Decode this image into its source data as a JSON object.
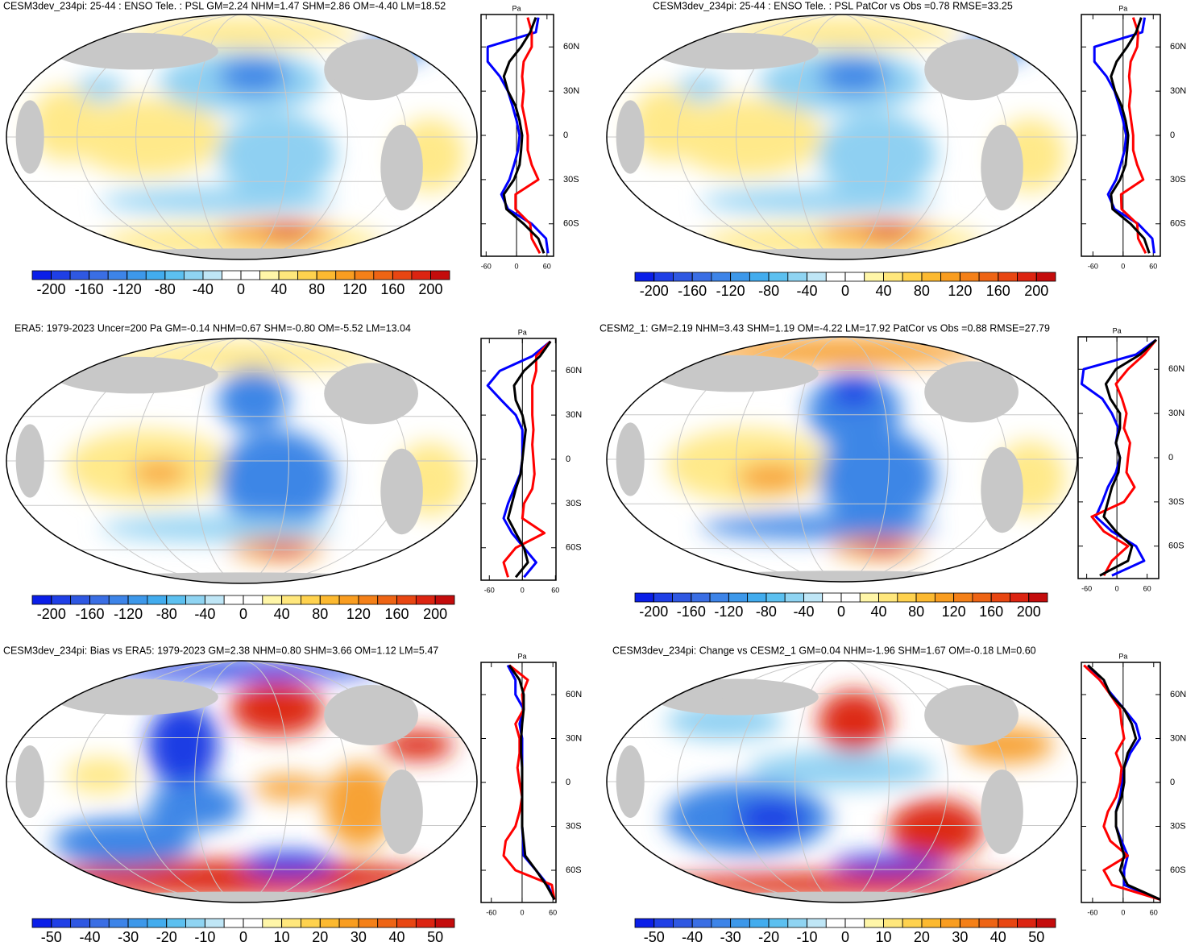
{
  "chart_data": [
    {
      "type": "line",
      "title": "CESM3dev_234pi: 25-44 : ENSO Tele. : PSL GM=2.24 NHM=1.47 SHM=2.86 OM=-4.40 LM=18.52",
      "x_label": "Pa",
      "xlim": [
        -70,
        73
      ],
      "xticks": [
        -60,
        0,
        60
      ],
      "ylim": [
        -82,
        82
      ],
      "yticks": [
        {
          "value": -60,
          "label": "60S"
        },
        {
          "value": -30,
          "label": "30S"
        },
        0,
        {
          "value": 30,
          "label": "30N"
        },
        {
          "value": 60,
          "label": "60N"
        }
      ],
      "y": [
        -80,
        -70,
        -60,
        -50,
        -40,
        -30,
        -20,
        -10,
        0,
        10,
        20,
        30,
        40,
        50,
        60,
        70,
        80
      ],
      "series": [
        {
          "color": "#0000ff",
          "values": [
            62,
            58,
            30,
            -17,
            -30,
            -14,
            -5,
            3,
            6,
            0,
            -8,
            -17,
            -33,
            -57,
            -57,
            38,
            43
          ]
        },
        {
          "color": "#ff0000",
          "values": [
            46,
            30,
            27,
            -2,
            -2,
            43,
            30,
            22,
            22,
            17,
            11,
            14,
            11,
            14,
            30,
            30,
            22
          ]
        },
        {
          "color": "#000000",
          "values": [
            54,
            43,
            14,
            -20,
            -25,
            -5,
            6,
            9,
            11,
            6,
            -2,
            -17,
            -25,
            -14,
            9,
            27,
            38
          ]
        }
      ],
      "colorbar": {
        "lim": [
          -220,
          220
        ],
        "ticks": [
          -200,
          -160,
          -120,
          -80,
          -40,
          0,
          40,
          80,
          120,
          160,
          200
        ],
        "colors": [
          "#0a1ee8",
          "#1f3fe6",
          "#2f58e2",
          "#3a6ee4",
          "#3d84e8",
          "#3d98ea",
          "#42acee",
          "#5cc0f0",
          "#8fd4f2",
          "#bfe6f6",
          "#ffffff",
          "#ffffff",
          "#fff6a8",
          "#ffe77c",
          "#ffd24e",
          "#fcb930",
          "#f99d20",
          "#f48018",
          "#ee6414",
          "#e84612",
          "#dc2411",
          "#c40c0c"
        ]
      }
    },
    {
      "type": "line",
      "title": "CESM3dev_234pi: 25-44 : ENSO Tele. : PSL PatCor vs Obs =0.78 RMSE=33.25",
      "x_label": "Pa",
      "xlim": [
        -83,
        74
      ],
      "xticks": [
        -60,
        0,
        60
      ],
      "ylim": [
        -82,
        82
      ],
      "yticks": [
        {
          "value": -60,
          "label": "60S"
        },
        {
          "value": -30,
          "label": "30S"
        },
        0,
        {
          "value": 30,
          "label": "30N"
        },
        {
          "value": 60,
          "label": "60N"
        }
      ],
      "y": [
        -80,
        -70,
        -60,
        -50,
        -40,
        -30,
        -20,
        -10,
        0,
        10,
        20,
        30,
        40,
        50,
        60,
        70,
        80
      ],
      "series": [
        {
          "color": "#0000ff",
          "values": [
            62,
            58,
            30,
            -17,
            -30,
            -14,
            -5,
            3,
            6,
            0,
            -8,
            -17,
            -33,
            -57,
            -57,
            38,
            43
          ]
        },
        {
          "color": "#ff0000",
          "values": [
            45,
            30,
            28,
            -3,
            -4,
            40,
            28,
            20,
            20,
            16,
            12,
            15,
            12,
            15,
            28,
            30,
            20
          ]
        },
        {
          "color": "#000000",
          "values": [
            52,
            42,
            15,
            -21,
            -24,
            -6,
            5,
            8,
            10,
            5,
            -3,
            -16,
            -24,
            -13,
            8,
            26,
            36
          ]
        }
      ],
      "colorbar": {
        "lim": [
          -220,
          220
        ],
        "ticks": [
          -200,
          -160,
          -120,
          -80,
          -40,
          0,
          40,
          80,
          120,
          160,
          200
        ],
        "colors": [
          "#0a1ee8",
          "#1f3fe6",
          "#2f58e2",
          "#3a6ee4",
          "#3d84e8",
          "#3d98ea",
          "#42acee",
          "#5cc0f0",
          "#8fd4f2",
          "#bfe6f6",
          "#ffffff",
          "#ffffff",
          "#fff6a8",
          "#ffe77c",
          "#ffd24e",
          "#fcb930",
          "#f99d20",
          "#f48018",
          "#ee6414",
          "#e84612",
          "#dc2411",
          "#c40c0c"
        ]
      }
    },
    {
      "type": "line",
      "title": "ERA5: 1979-2023 Uncer=200 Pa GM=-0.14 NHM=0.67 SHM=-0.80 OM=-5.52 LM=13.04",
      "x_label": "Pa",
      "xlim": [
        -75,
        61
      ],
      "xticks": [
        -60,
        0,
        60
      ],
      "ylim": [
        -82,
        82
      ],
      "yticks": [
        {
          "value": -60,
          "label": "60S"
        },
        {
          "value": -30,
          "label": "30S"
        },
        0,
        {
          "value": 30,
          "label": "30N"
        },
        {
          "value": 60,
          "label": "60N"
        }
      ],
      "y": [
        -80,
        -70,
        -60,
        -50,
        -40,
        -30,
        -20,
        -10,
        0,
        10,
        20,
        30,
        40,
        50,
        60,
        70,
        80
      ],
      "series": [
        {
          "color": "#0000ff",
          "values": [
            3,
            25,
            3,
            -19,
            -34,
            -26,
            -15,
            -4,
            0,
            0,
            0,
            -12,
            -38,
            -63,
            -41,
            18,
            51
          ]
        },
        {
          "color": "#ff0000",
          "values": [
            -26,
            -34,
            -12,
            40,
            0,
            3,
            18,
            22,
            20,
            18,
            20,
            18,
            18,
            18,
            25,
            25,
            51
          ]
        },
        {
          "color": "#000000",
          "values": [
            -12,
            10,
            3,
            -12,
            -26,
            -19,
            -12,
            -3,
            0,
            3,
            6,
            0,
            -12,
            -15,
            3,
            32,
            51
          ]
        }
      ],
      "colorbar": {
        "lim": [
          -220,
          220
        ],
        "ticks": [
          -200,
          -160,
          -120,
          -80,
          -40,
          0,
          40,
          80,
          120,
          160,
          200
        ],
        "colors": [
          "#0a1ee8",
          "#1f3fe6",
          "#2f58e2",
          "#3a6ee4",
          "#3d84e8",
          "#3d98ea",
          "#42acee",
          "#5cc0f0",
          "#8fd4f2",
          "#bfe6f6",
          "#ffffff",
          "#ffffff",
          "#fff6a8",
          "#ffe77c",
          "#ffd24e",
          "#fcb930",
          "#f99d20",
          "#f48018",
          "#ee6414",
          "#e84612",
          "#dc2411",
          "#c40c0c"
        ]
      }
    },
    {
      "type": "line",
      "title": "CESM2_1: GM=2.19 NHM=3.43 SHM=1.19 OM=-4.22 LM=17.92 PatCor vs Obs =0.88 RMSE=27.79",
      "x_label": "Pa",
      "xlim": [
        -77,
        83
      ],
      "xticks": [
        -60,
        0,
        60
      ],
      "ylim": [
        -82,
        82
      ],
      "yticks": [
        {
          "value": -60,
          "label": "60S"
        },
        {
          "value": -30,
          "label": "30S"
        },
        0,
        {
          "value": 30,
          "label": "30N"
        },
        {
          "value": 60,
          "label": "60N"
        }
      ],
      "y": [
        -80,
        -70,
        -60,
        -50,
        -40,
        -30,
        -20,
        -10,
        0,
        10,
        20,
        30,
        40,
        50,
        60,
        70,
        80
      ],
      "series": [
        {
          "color": "#0000ff",
          "values": [
            -10,
            54,
            38,
            -10,
            -42,
            -29,
            -18,
            -2,
            6,
            -2,
            3,
            -10,
            -29,
            -70,
            -66,
            38,
            78
          ]
        },
        {
          "color": "#ff0000",
          "values": [
            -26,
            -10,
            22,
            -26,
            -50,
            14,
            35,
            19,
            22,
            26,
            14,
            19,
            10,
            -2,
            22,
            54,
            78
          ]
        },
        {
          "color": "#000000",
          "values": [
            -34,
            22,
            30,
            -2,
            -26,
            -18,
            -10,
            3,
            6,
            -2,
            6,
            6,
            -13,
            -22,
            -2,
            46,
            78
          ]
        }
      ],
      "colorbar": {
        "lim": [
          -220,
          220
        ],
        "ticks": [
          -200,
          -160,
          -120,
          -80,
          -40,
          0,
          40,
          80,
          120,
          160,
          200
        ],
        "colors": [
          "#0a1ee8",
          "#1f3fe6",
          "#2f58e2",
          "#3a6ee4",
          "#3d84e8",
          "#3d98ea",
          "#42acee",
          "#5cc0f0",
          "#8fd4f2",
          "#bfe6f6",
          "#ffffff",
          "#ffffff",
          "#fff6a8",
          "#ffe77c",
          "#ffd24e",
          "#fcb930",
          "#f99d20",
          "#f48018",
          "#ee6414",
          "#e84612",
          "#dc2411",
          "#c40c0c"
        ]
      }
    },
    {
      "type": "line",
      "title": "CESM3dev_234pi: Bias vs ERA5: 1979-2023 GM=2.38 NHM=0.80 SHM=3.66 OM=1.12 LM=5.47",
      "x_label": "Pa",
      "xlim": [
        -80,
        66
      ],
      "xticks": [
        -60,
        0,
        60
      ],
      "ylim": [
        -82,
        82
      ],
      "yticks": [
        {
          "value": -60,
          "label": "60S"
        },
        {
          "value": -30,
          "label": "30S"
        },
        0,
        {
          "value": 30,
          "label": "30N"
        },
        {
          "value": 60,
          "label": "60N"
        }
      ],
      "y": [
        -80,
        -70,
        -60,
        -50,
        -40,
        -30,
        -20,
        -10,
        0,
        10,
        20,
        30,
        40,
        50,
        60,
        70,
        80
      ],
      "series": [
        {
          "color": "#0000ff",
          "values": [
            63,
            50,
            27,
            3,
            2,
            0,
            0,
            0,
            0,
            0,
            0,
            0,
            -5,
            3,
            -13,
            -13,
            -28
          ]
        },
        {
          "color": "#ff0000",
          "values": [
            63,
            58,
            -13,
            -36,
            -32,
            -13,
            -5,
            0,
            -5,
            -9,
            -5,
            -5,
            -13,
            3,
            0,
            11,
            -25
          ]
        },
        {
          "color": "#000000",
          "values": [
            63,
            47,
            27,
            6,
            3,
            0,
            0,
            0,
            0,
            0,
            -2,
            -2,
            0,
            3,
            3,
            -5,
            -25
          ]
        }
      ],
      "colorbar": {
        "lim": [
          -55,
          55
        ],
        "ticks": [
          -50,
          -40,
          -30,
          -20,
          -10,
          0,
          10,
          20,
          30,
          40,
          50
        ],
        "colors": [
          "#0a1ee8",
          "#1f3fe6",
          "#2f58e2",
          "#3a6ee4",
          "#3d84e8",
          "#3d98ea",
          "#42acee",
          "#5cc0f0",
          "#8fd4f2",
          "#bfe6f6",
          "#ffffff",
          "#ffffff",
          "#fff6a8",
          "#ffe77c",
          "#ffd24e",
          "#fcb930",
          "#f99d20",
          "#f48018",
          "#ee6414",
          "#e84612",
          "#dc2411",
          "#c40c0c"
        ]
      }
    },
    {
      "type": "line",
      "title": "CESM3dev_234pi: Change vs CESM2_1 GM=0.04 NHM=-1.96 SHM=1.67 OM=-0.18 LM=0.60",
      "x_label": "Pa",
      "xlim": [
        -82,
        73
      ],
      "xticks": [
        -60,
        0,
        60
      ],
      "ylim": [
        -82,
        82
      ],
      "yticks": [
        {
          "value": -60,
          "label": "60S"
        },
        {
          "value": -30,
          "label": "30S"
        },
        0,
        {
          "value": 30,
          "label": "30N"
        },
        {
          "value": 60,
          "label": "60N"
        }
      ],
      "y": [
        -80,
        -70,
        -60,
        -50,
        -40,
        -30,
        -20,
        -10,
        0,
        10,
        20,
        30,
        40,
        50,
        60,
        70,
        80
      ],
      "series": [
        {
          "color": "#0000ff",
          "values": [
            73,
            2,
            2,
            9,
            -3,
            -14,
            -14,
            -6,
            -2,
            2,
            14,
            33,
            25,
            2,
            -22,
            -46,
            -69
          ]
        },
        {
          "color": "#ff0000",
          "values": [
            73,
            -22,
            -38,
            9,
            -25,
            -38,
            -30,
            -14,
            -6,
            -3,
            -14,
            2,
            -3,
            -6,
            -25,
            -46,
            -77
          ]
        },
        {
          "color": "#000000",
          "values": [
            73,
            9,
            -6,
            2,
            -6,
            -14,
            -14,
            -3,
            2,
            2,
            9,
            25,
            17,
            2,
            -25,
            -38,
            -69
          ]
        }
      ],
      "colorbar": {
        "lim": [
          -55,
          55
        ],
        "ticks": [
          -50,
          -40,
          -30,
          -20,
          -10,
          0,
          10,
          20,
          30,
          40,
          50
        ],
        "colors": [
          "#0a1ee8",
          "#1f3fe6",
          "#2f58e2",
          "#3a6ee4",
          "#3d84e8",
          "#3d98ea",
          "#42acee",
          "#5cc0f0",
          "#8fd4f2",
          "#bfe6f6",
          "#ffffff",
          "#ffffff",
          "#fff6a8",
          "#ffe77c",
          "#ffd24e",
          "#fcb930",
          "#f99d20",
          "#f48018",
          "#ee6414",
          "#e84612",
          "#dc2411",
          "#c40c0c"
        ]
      }
    }
  ]
}
